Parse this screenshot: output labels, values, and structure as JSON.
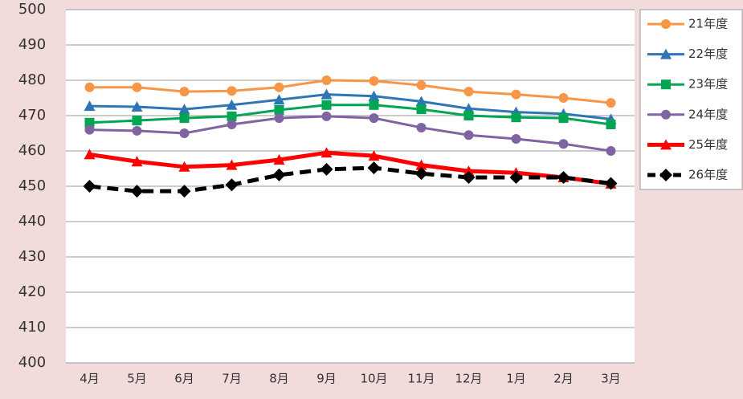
{
  "chart_data": {
    "type": "line",
    "categories": [
      "4月",
      "5月",
      "6月",
      "7月",
      "8月",
      "9月",
      "10月",
      "11月",
      "12月",
      "1月",
      "2月",
      "3月"
    ],
    "ylim": [
      400,
      500
    ],
    "yticks": [
      400,
      410,
      420,
      430,
      440,
      450,
      460,
      470,
      480,
      490,
      500
    ],
    "grid": true,
    "legend": "right",
    "series": [
      {
        "name": "21年度",
        "color": "#f79646",
        "marker": "circle",
        "dashed": false,
        "values": [
          478,
          478,
          476.8,
          477,
          478,
          480,
          479.8,
          478.6,
          476.8,
          476,
          475,
          473.6
        ]
      },
      {
        "name": "22年度",
        "color": "#2e75b6",
        "marker": "triangle",
        "dashed": false,
        "values": [
          472.7,
          472.5,
          471.8,
          473,
          474.5,
          476,
          475.5,
          474,
          472,
          471,
          470.5,
          469
        ]
      },
      {
        "name": "23年度",
        "color": "#00a651",
        "marker": "square",
        "dashed": false,
        "values": [
          468,
          468.6,
          469.3,
          469.8,
          471.6,
          473,
          473,
          471.8,
          470,
          469.5,
          469.3,
          467.5
        ]
      },
      {
        "name": "24年度",
        "color": "#8064a2",
        "marker": "circle",
        "dashed": false,
        "values": [
          466,
          465.7,
          465,
          467.5,
          469.3,
          469.8,
          469.3,
          466.6,
          464.5,
          463.4,
          462,
          460
        ]
      },
      {
        "name": "25年度",
        "color": "#ff0000",
        "marker": "triangle",
        "dashed": false,
        "values": [
          459,
          457,
          455.5,
          456,
          457.5,
          459.5,
          458.6,
          456,
          454.3,
          453.8,
          452.5,
          450.7
        ]
      },
      {
        "name": "26年度",
        "color": "#000000",
        "marker": "diamond",
        "dashed": true,
        "values": [
          450,
          448.6,
          448.6,
          450.4,
          453.2,
          454.8,
          455.2,
          453.6,
          452.5,
          452.5,
          452.5,
          450.8
        ]
      }
    ]
  }
}
